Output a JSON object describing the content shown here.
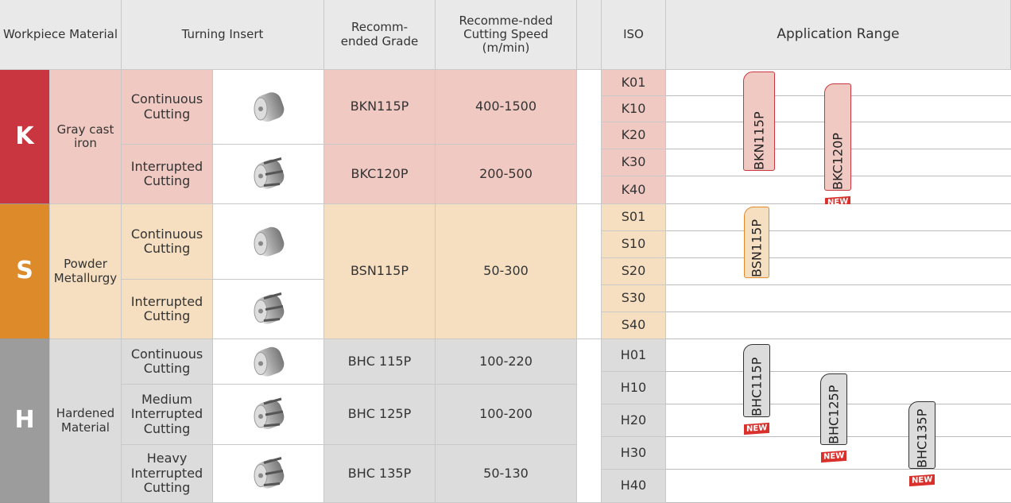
{
  "header": {
    "workpiece_material": "Workpiece Material",
    "turning_insert": "Turning Insert",
    "recommended_grade": "Recomm-ended Grade",
    "cutting_speed": "Recomme-nded Cutting Speed (m/min)",
    "iso": "ISO",
    "application_range": "Application Range"
  },
  "groups": [
    {
      "letter": "K",
      "material": "Gray cast iron",
      "cuttings": [
        "Continuous Cutting",
        "Interrupted Cutting"
      ],
      "grades": [
        {
          "grade": "BKN115P",
          "speed": "400-1500"
        },
        {
          "grade": "BKC120P",
          "speed": "200-500"
        }
      ],
      "iso": [
        "K01",
        "K10",
        "K20",
        "K30",
        "K40"
      ],
      "bars": [
        {
          "label": "BKN115P"
        },
        {
          "label": "BKC120P",
          "badge": "NEW"
        }
      ]
    },
    {
      "letter": "S",
      "material": "Powder Metallurgy",
      "cuttings": [
        "Continuous Cutting",
        "Interrupted Cutting"
      ],
      "grades": [
        {
          "grade": "BSN115P",
          "speed": "50-300"
        }
      ],
      "iso": [
        "S01",
        "S10",
        "S20",
        "S30",
        "S40"
      ],
      "bars": [
        {
          "label": "BSN115P"
        }
      ]
    },
    {
      "letter": "H",
      "material": "Hardened Material",
      "cuttings": [
        "Continuous Cutting",
        "Medium Interrupted Cutting",
        "Heavy Interrupted Cutting"
      ],
      "grades": [
        {
          "grade": "BHC 115P",
          "speed": "100-220"
        },
        {
          "grade": "BHC 125P",
          "speed": "100-200"
        },
        {
          "grade": "BHC 135P",
          "speed": "50-130"
        }
      ],
      "iso": [
        "H01",
        "H10",
        "H20",
        "H30",
        "H40"
      ],
      "bars": [
        {
          "label": "BHC115P",
          "badge": "NEW"
        },
        {
          "label": "BHC125P",
          "badge": "NEW"
        },
        {
          "label": "BHC135P",
          "badge": "NEW"
        }
      ]
    }
  ]
}
